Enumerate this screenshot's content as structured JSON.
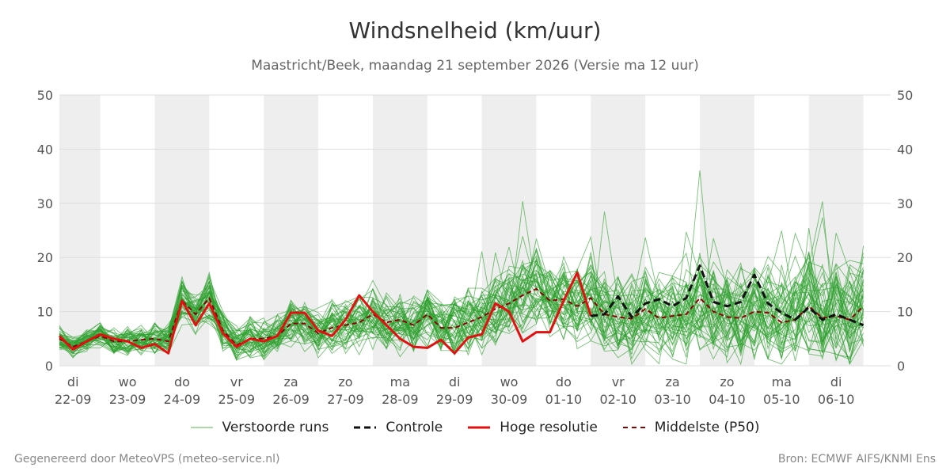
{
  "header": {
    "title": "Windsnelheid (km/uur)",
    "subtitle": "Maastricht/Beek, maandag 21 september 2026 (Versie ma 12 uur)"
  },
  "footer": {
    "left": "Gegenereerd door MeteoVPS (meteo-service.nl)",
    "right": "Bron: ECMWF AIFS/KNMI Ens"
  },
  "colors": {
    "ensemble": "#2ca02c",
    "control": "#111111",
    "high_res": "#e11111",
    "median": "#8b0000",
    "weekend_band": "#eeeeee",
    "grid": "#dddddd"
  },
  "legend": [
    {
      "label": "Verstoorde runs",
      "style": "ensemble"
    },
    {
      "label": "Controle",
      "style": "control"
    },
    {
      "label": "Hoge resolutie",
      "style": "high_res"
    },
    {
      "label": "Middelste (P50)",
      "style": "median"
    }
  ],
  "chart_data": {
    "type": "line",
    "title": "Windsnelheid (km/uur)",
    "ylim": [
      0,
      50
    ],
    "xlim": [
      -0.25,
      15.0
    ],
    "yticks": [
      0,
      10,
      20,
      30,
      40,
      50
    ],
    "xticks": [
      {
        "day": "di",
        "date": "22-09"
      },
      {
        "day": "wo",
        "date": "23-09"
      },
      {
        "day": "do",
        "date": "24-09"
      },
      {
        "day": "vr",
        "date": "25-09"
      },
      {
        "day": "za",
        "date": "26-09"
      },
      {
        "day": "zo",
        "date": "27-09"
      },
      {
        "day": "ma",
        "date": "28-09"
      },
      {
        "day": "di",
        "date": "29-09"
      },
      {
        "day": "wo",
        "date": "30-09"
      },
      {
        "day": "do",
        "date": "01-10"
      },
      {
        "day": "vr",
        "date": "02-10"
      },
      {
        "day": "za",
        "date": "03-10"
      },
      {
        "day": "zo",
        "date": "04-10"
      },
      {
        "day": "ma",
        "date": "05-10"
      },
      {
        "day": "di",
        "date": "06-10"
      }
    ],
    "shaded_days": [
      0,
      2,
      4,
      6,
      8,
      10,
      12,
      14
    ],
    "grid": true,
    "legend_position": "bottom",
    "series": [
      {
        "name": "Hoge resolutie",
        "style": "high_res",
        "x": [
          -0.25,
          0,
          0.25,
          0.5,
          0.75,
          1,
          1.25,
          1.5,
          1.75,
          2,
          2.25,
          2.5,
          2.75,
          3,
          3.25,
          3.5,
          3.75,
          4,
          4.25,
          4.5,
          4.75,
          5,
          5.25,
          5.5,
          5.75,
          6,
          6.25,
          6.5,
          6.75,
          7,
          7.25,
          7.5,
          7.75,
          8,
          8.25,
          8.5,
          8.75,
          9,
          9.25,
          9.5
        ],
        "values": [
          5.5,
          3.0,
          4.5,
          5.8,
          5.0,
          4.5,
          3.3,
          4.0,
          2.3,
          12.0,
          7.5,
          11.5,
          6.0,
          3.5,
          5.0,
          4.5,
          5.5,
          9.8,
          9.8,
          6.5,
          5.5,
          8.5,
          13.0,
          10.0,
          7.5,
          5.0,
          3.5,
          3.3,
          4.8,
          2.3,
          5.2,
          5.8,
          11.5,
          10.0,
          4.5,
          6.2,
          6.2,
          12.0,
          17.2,
          9.2
        ]
      },
      {
        "name": "Controle",
        "style": "control",
        "x": [
          9.5,
          9.75,
          10,
          10.25,
          10.5,
          10.75,
          11,
          11.25,
          11.5,
          11.75,
          12,
          12.25,
          12.5,
          12.75,
          13,
          13.25,
          13.5,
          13.75,
          14,
          14.25,
          14.5
        ],
        "values": [
          9.2,
          9.5,
          12.8,
          9.0,
          11.5,
          12.3,
          11.0,
          12.5,
          18.5,
          11.8,
          11.0,
          11.8,
          16.8,
          11.5,
          9.8,
          8.5,
          10.8,
          8.5,
          9.5,
          8.5,
          7.5
        ]
      },
      {
        "name": "Middelste (P50)",
        "style": "median",
        "x": [
          -0.25,
          0,
          0.25,
          0.5,
          0.75,
          1,
          1.25,
          1.5,
          1.75,
          2,
          2.25,
          2.5,
          2.75,
          3,
          3.25,
          3.5,
          3.75,
          4,
          4.25,
          4.5,
          4.75,
          5,
          5.25,
          5.5,
          5.75,
          6,
          6.25,
          6.5,
          6.75,
          7,
          7.25,
          7.5,
          7.75,
          8,
          8.25,
          8.5,
          8.75,
          9,
          9.25,
          9.5,
          9.75,
          10,
          10.25,
          10.5,
          10.75,
          11,
          11.25,
          11.5,
          11.75,
          12,
          12.25,
          12.5,
          12.75,
          13,
          13.25,
          13.5,
          13.75,
          14,
          14.25,
          14.5
        ],
        "values": [
          5.0,
          3.5,
          4.5,
          5.5,
          4.5,
          4.5,
          4.8,
          5.0,
          4.5,
          12.0,
          9.5,
          12.5,
          6.5,
          3.8,
          5.0,
          5.0,
          5.5,
          7.8,
          7.8,
          6.0,
          7.0,
          7.5,
          8.0,
          9.5,
          8.0,
          8.5,
          7.5,
          9.5,
          7.0,
          7.0,
          8.0,
          9.0,
          10.5,
          11.5,
          13.0,
          14.2,
          12.0,
          12.3,
          11.0,
          12.5,
          9.5,
          9.0,
          8.7,
          10.5,
          8.8,
          9.2,
          9.5,
          12.5,
          10.0,
          9.0,
          8.8,
          10.0,
          9.8,
          8.0,
          8.5,
          11.0,
          8.8,
          9.2,
          8.5,
          11.0
        ]
      }
    ]
  }
}
